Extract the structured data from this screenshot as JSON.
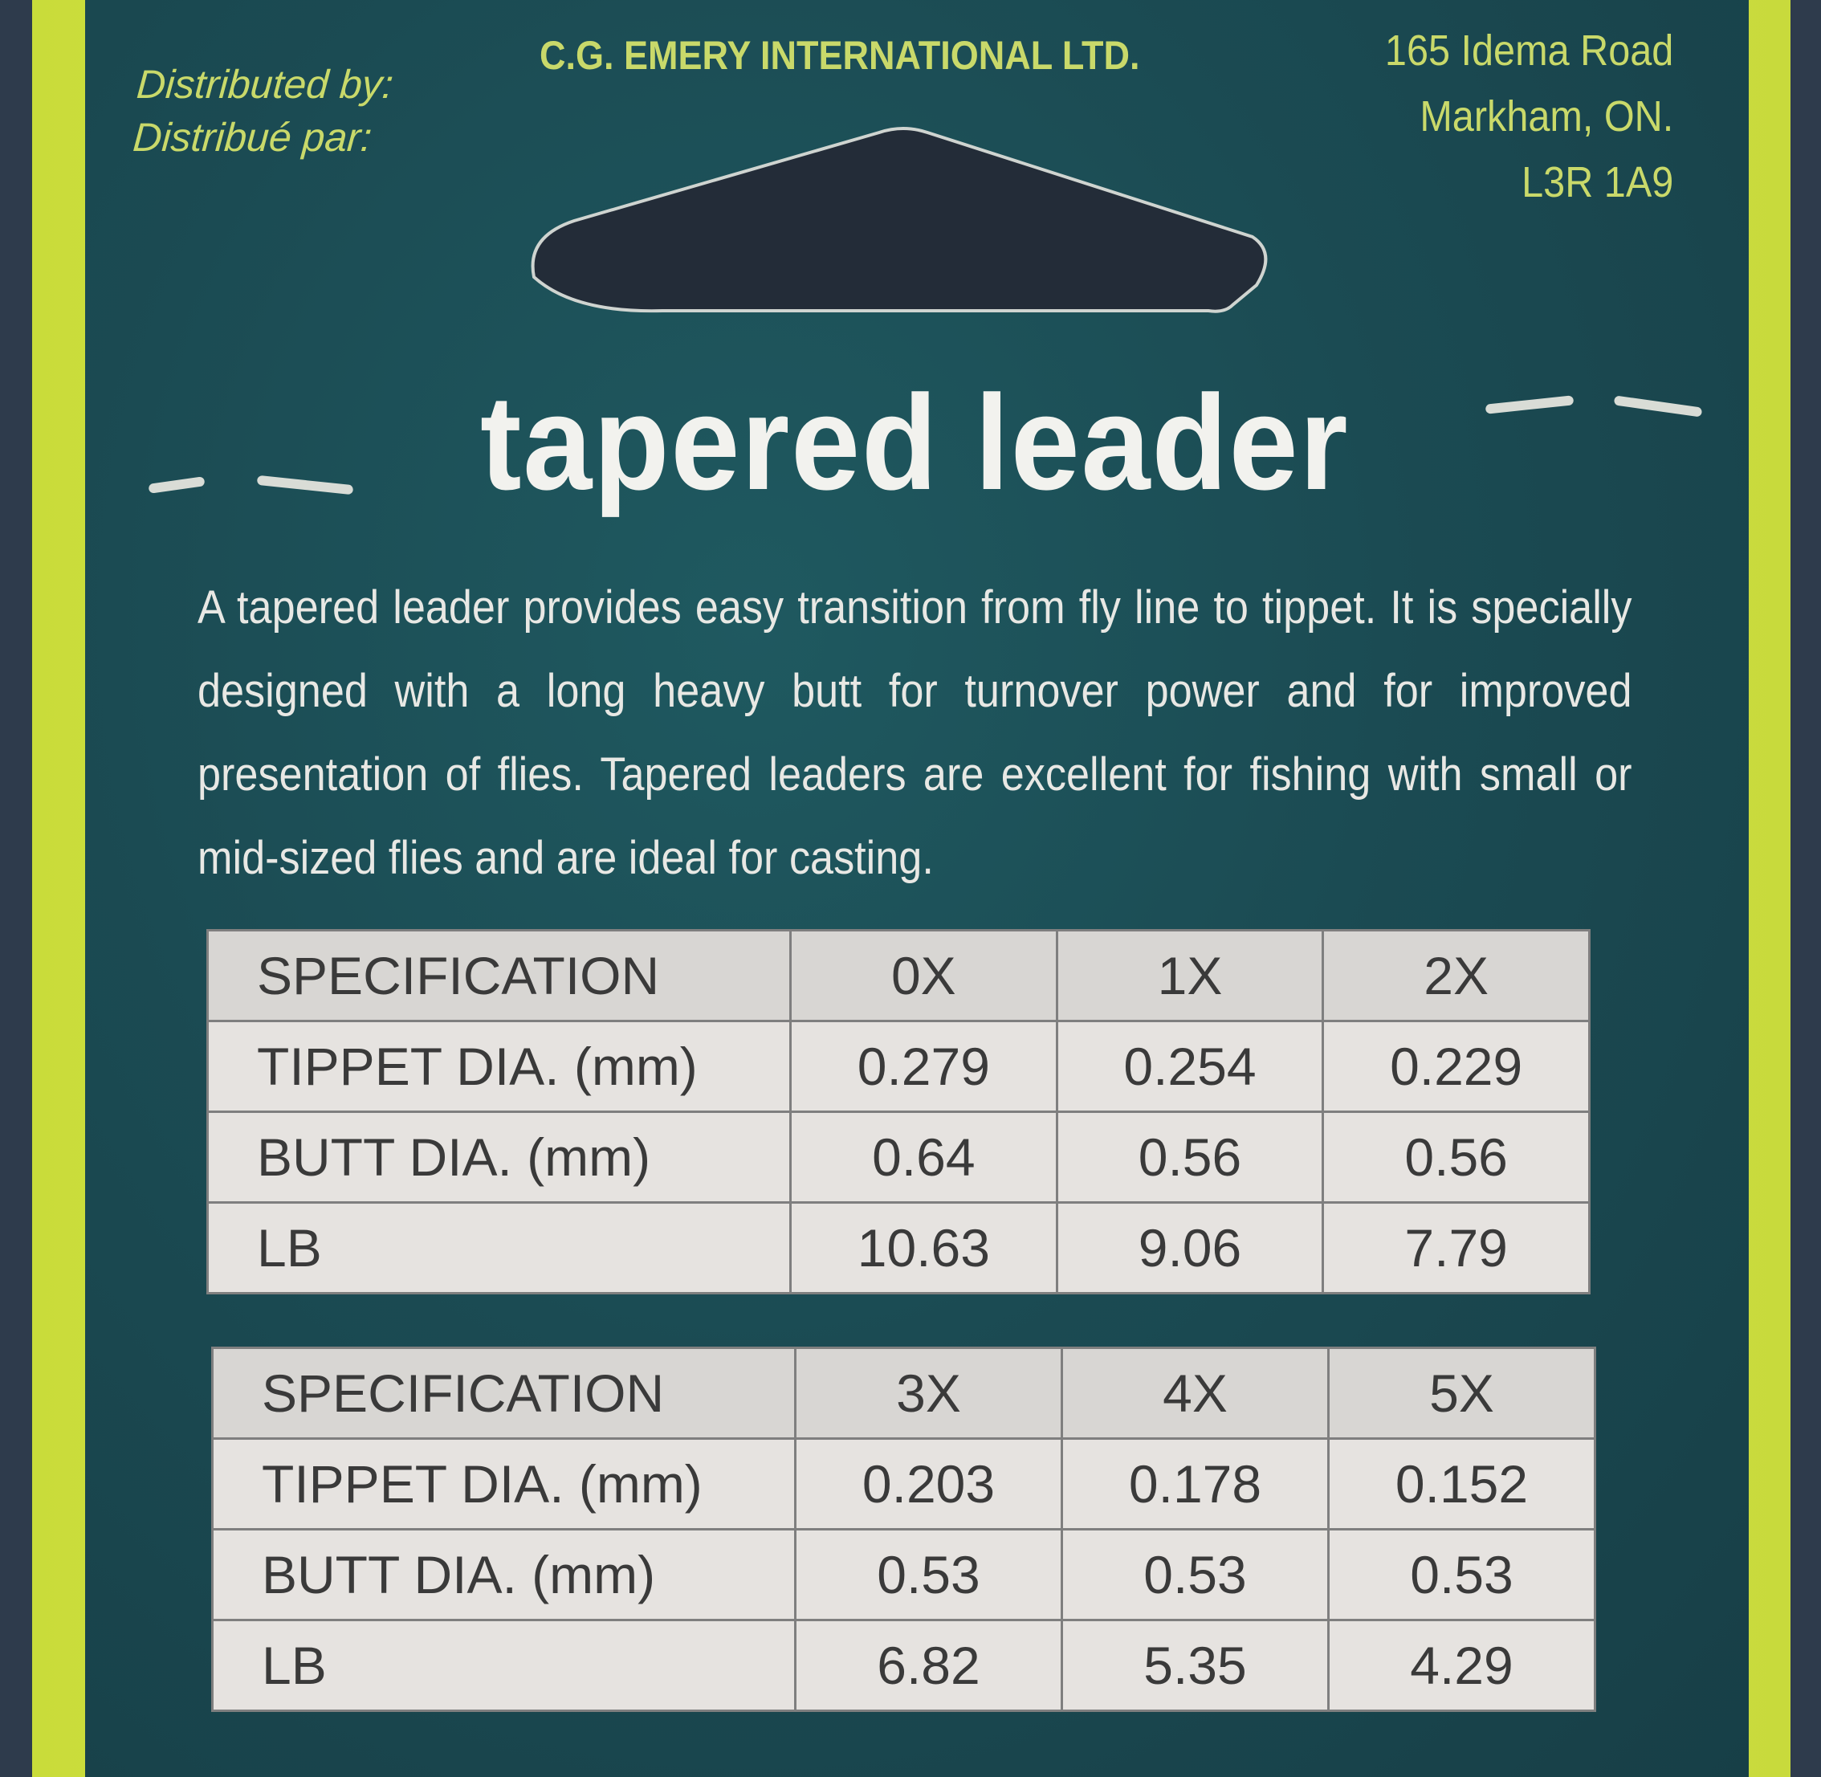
{
  "distributor": {
    "label_en": "Distributed by:",
    "label_fr": "Distribué par:",
    "company": "C.G. EMERY INTERNATIONAL LTD.",
    "address": [
      "165 Idema Road",
      "Markham, ON.",
      "L3R 1A9"
    ]
  },
  "title": "tapered leader",
  "description": "A tapered leader provides easy transition from fly line to tippet.  It is specially designed with a long heavy butt for turnover power and for improved presentation of flies. Tapered leaders are excellent for fishing with small or mid-sized flies and are ideal for casting.",
  "tables": [
    {
      "header": [
        "SPECIFICATION",
        "0X",
        "1X",
        "2X"
      ],
      "rows": [
        [
          "TIPPET DIA. (mm)",
          "0.279",
          "0.254",
          "0.229"
        ],
        [
          "BUTT DIA. (mm)",
          "0.64",
          "0.56",
          "0.56"
        ],
        [
          "LB",
          "10.63",
          "9.06",
          "7.79"
        ]
      ]
    },
    {
      "header": [
        "SPECIFICATION",
        "3X",
        "4X",
        "5X"
      ],
      "rows": [
        [
          "TIPPET DIA. (mm)",
          "0.203",
          "0.178",
          "0.152"
        ],
        [
          "BUTT DIA. (mm)",
          "0.53",
          "0.53",
          "0.53"
        ],
        [
          "LB",
          "6.82",
          "5.35",
          "4.29"
        ]
      ]
    }
  ],
  "colors": {
    "border": "#d6e64a",
    "panel": "#1b4b53",
    "accent_text": "#c9d96a"
  }
}
